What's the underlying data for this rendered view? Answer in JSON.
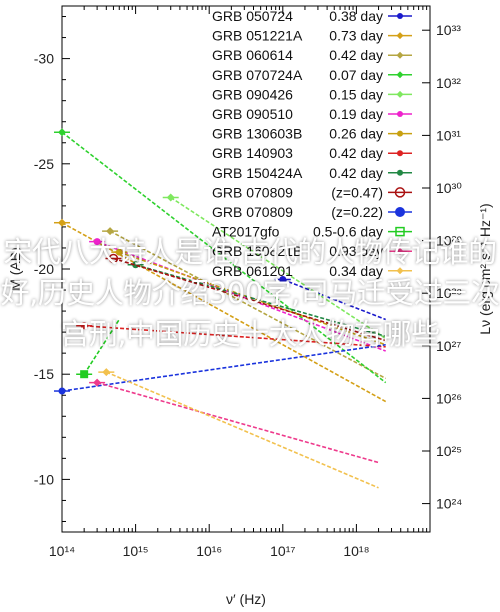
{
  "chart_data": {
    "type": "line",
    "xlabel": "ν′ (Hz)",
    "ylabel_left": "M (AB)",
    "ylabel_right": "Lν (erg cm² s⁻¹ Hz⁻¹)",
    "x_scale": "log",
    "xlim": [
      100000000000000.0,
      1e+19
    ],
    "ylim_left_mag": [
      -7.5,
      -32.5
    ],
    "x_tick_labels": [
      "10¹⁴",
      "10¹⁵",
      "10¹⁶",
      "10¹⁷",
      "10¹⁸"
    ],
    "left_tick_labels": [
      "-30",
      "-25",
      "-20",
      "-15",
      "-10"
    ],
    "right_tick_labels": [
      "10³³",
      "10³²",
      "10³¹",
      "10³⁰",
      "10²⁹",
      "10²⁸",
      "10²⁷",
      "10²⁶",
      "10²⁵",
      "10²⁴"
    ],
    "legend_position": "top-right",
    "series": [
      {
        "name": "GRB 050724",
        "time": "0.38 day",
        "color": "#1a1acc",
        "marker": "circle",
        "x": [
          1e+17,
          2.5e+18
        ],
        "y": [
          -19.5,
          -17.6
        ]
      },
      {
        "name": "GRB 051221A",
        "time": "0.73 day",
        "color": "#d4a017",
        "marker": "diamond",
        "x": [
          100000000000000.0,
          2.5e+18
        ],
        "y": [
          -22.2,
          -13.7
        ]
      },
      {
        "name": "GRB 060614",
        "time": "0.42 day",
        "color": "#b5a642",
        "marker": "diamond",
        "x": [
          450000000000000.0,
          2.5e+18
        ],
        "y": [
          -21.8,
          -14.8
        ]
      },
      {
        "name": "GRB 070724A",
        "time": "0.07 day",
        "color": "#2fd12f",
        "marker": "diamond",
        "x": [
          100000000000000.0,
          2.5e+18
        ],
        "y": [
          -26.5,
          -14.6
        ]
      },
      {
        "name": "GRB 090426",
        "time": "0.15 day",
        "color": "#7fe85f",
        "marker": "diamond",
        "x": [
          3000000000000000.0,
          2.5e+18
        ],
        "y": [
          -23.4,
          -16.7
        ]
      },
      {
        "name": "GRB 090510",
        "time": "0.19 day",
        "color": "#ee22cc",
        "marker": "circle",
        "x": [
          300000000000000.0,
          2.5e+18
        ],
        "y": [
          -21.3,
          -16.1
        ]
      },
      {
        "name": "GRB 130603B",
        "time": "0.26 day",
        "color": "#c8a010",
        "marker": "circle",
        "x": [
          600000000000000.0,
          2.5e+18
        ],
        "y": [
          -20.8,
          -16.4
        ]
      },
      {
        "name": "GRB 140903",
        "time": "0.42 day",
        "color": "#dd2222",
        "marker": "circle",
        "x": [
          200000000000000.0,
          2.5e+18
        ],
        "y": [
          -17.3,
          -16.3
        ]
      },
      {
        "name": "GRB 150424A",
        "time": "0.42 day",
        "color": "#228844",
        "marker": "circle",
        "x": [
          1000000000000000.0,
          2.5e+18
        ],
        "y": [
          -20.2,
          -16.8
        ]
      },
      {
        "name": "GRB 070809",
        "time": "(z=0.47)",
        "color": "#aa1111",
        "marker": "open-circle",
        "x": [
          500000000000000.0,
          2.5e+18
        ],
        "y": [
          -20.5,
          -16.6
        ]
      },
      {
        "name": "GRB 070809",
        "time": "(z=0.22)",
        "color": "#1a33dd",
        "marker": "filled-circle",
        "x": [
          100000000000000.0,
          2.5e+18
        ],
        "y": [
          -14.2,
          -16.4
        ]
      },
      {
        "name": "AT2017gfo",
        "time": "0.5-0.6 day",
        "color": "#22cc22",
        "marker": "square",
        "x": [
          200000000000000.0,
          600000000000000.0
        ],
        "y": [
          -15.0,
          -17.6
        ]
      },
      {
        "name": "GRB 160821B",
        "time": "0.93 day",
        "color": "#ee3a8c",
        "marker": "diamond",
        "x": [
          300000000000000.0,
          2e+18
        ],
        "y": [
          -14.6,
          -10.8
        ]
      },
      {
        "name": "GRB 061201",
        "time": "0.34 day",
        "color": "#f2c14e",
        "marker": "diamond",
        "x": [
          400000000000000.0,
          2e+18
        ],
        "y": [
          -15.1,
          -9.6
        ]
      }
    ]
  },
  "overlay_text": "宋代八大诗人是谁,古代的人物传记谁的好,历史人物介绍300字,司马迁受过三次宫刑,中国历史十大人物有哪些"
}
